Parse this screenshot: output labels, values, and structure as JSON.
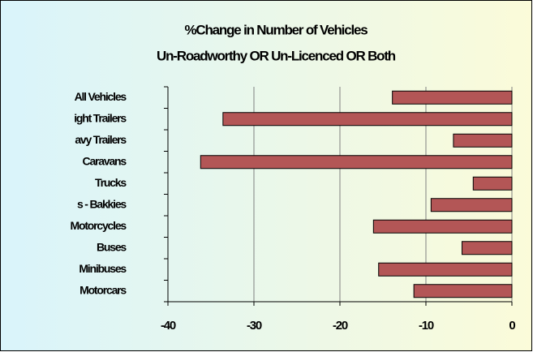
{
  "chart_data": {
    "type": "bar",
    "orientation": "horizontal",
    "title": "%Change in Number of Vehicles",
    "subtitle": "Un-Roadworthy OR Un-Licenced OR Both",
    "categories": [
      "All Vehicles",
      "ight Trailers",
      "avy Trailers",
      "Caravans",
      "Trucks",
      "s - Bakkies",
      "Motorcycles",
      "Buses",
      "Minibuses",
      "Motorcars"
    ],
    "values": [
      -13.9,
      -33.6,
      -6.8,
      -36.2,
      -4.5,
      -9.4,
      -16.1,
      -5.8,
      -15.5,
      -11.4
    ],
    "color": "#b35656",
    "xlim": [
      -40,
      0
    ],
    "xticks": [
      -40,
      -30,
      -20,
      -10,
      0
    ],
    "grid": true
  }
}
